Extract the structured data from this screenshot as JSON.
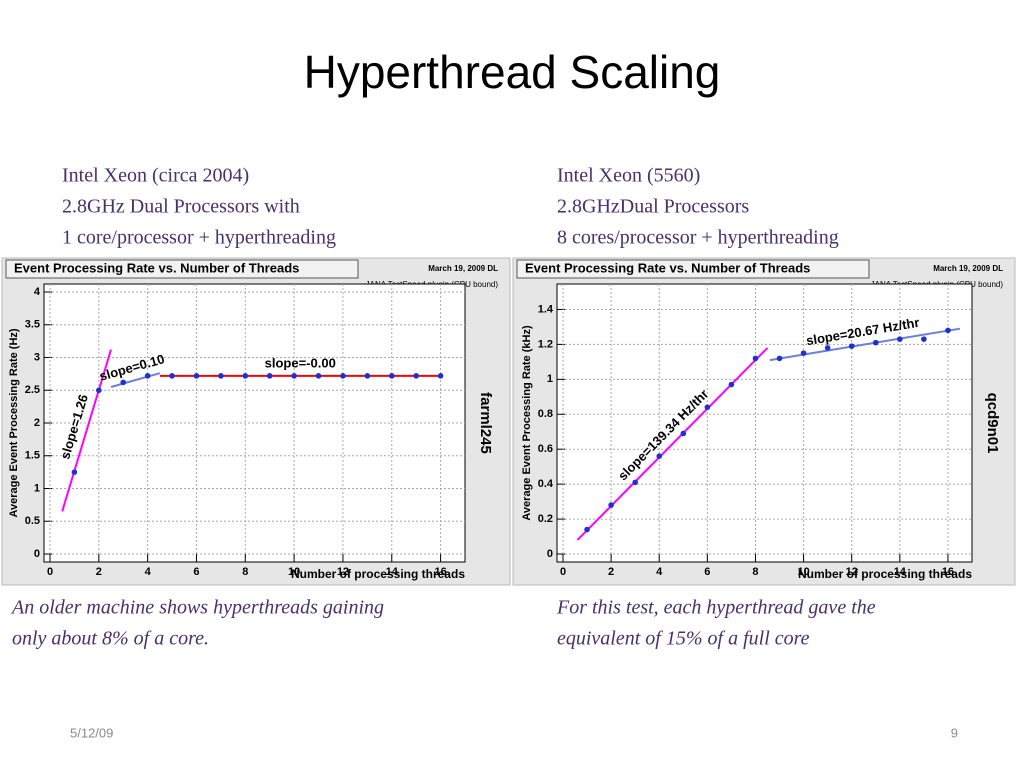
{
  "slide": {
    "title": "Hyperthread Scaling",
    "left_heading": [
      "Intel Xeon (circa 2004)",
      " 2.8GHz Dual Processors with",
      "1 core/processor + hyperthreading"
    ],
    "right_heading": [
      "Intel Xeon (5560)",
      "2.8GHzDual Processors",
      "8 cores/processor + hyperthreading"
    ],
    "left_caption": [
      "An older machine shows hyperthreads gaining",
      "only about 8% of a core."
    ],
    "right_caption": [
      "For this test, each hyperthread gave the",
      "equivalent of 15% of a full core"
    ],
    "date": "5/12/09",
    "page_number": "9"
  },
  "chart_data": [
    {
      "type": "scatter",
      "title": "Event Processing Rate vs. Number of Threads",
      "date": "March 19, 2009 DL",
      "subtitle": "JANA TestSpeed plugin (CPU bound)",
      "x_label": "Number of processing threads",
      "y_label": "Average Event Processing Rate (Hz)",
      "side_label": "farml245",
      "xlim": [
        0,
        17
      ],
      "xticks": [
        0,
        2,
        4,
        6,
        8,
        10,
        12,
        14,
        16
      ],
      "ylim": [
        0,
        4
      ],
      "yticks": [
        0,
        0.5,
        1,
        1.5,
        2,
        2.5,
        3,
        3.5,
        4
      ],
      "grid": true,
      "color": "#1f2fd0",
      "x": [
        1,
        2,
        3,
        4,
        5,
        6,
        7,
        8,
        9,
        10,
        11,
        12,
        13,
        14,
        15,
        16
      ],
      "values": [
        1.25,
        2.5,
        2.62,
        2.72,
        2.72,
        2.72,
        2.72,
        2.72,
        2.72,
        2.72,
        2.72,
        2.72,
        2.72,
        2.72,
        2.72,
        2.72
      ],
      "fits": [
        {
          "label": "slope=1.26",
          "color": "#ff00ff",
          "x": [
            0.5,
            2.5
          ],
          "y": [
            0.65,
            3.12
          ]
        },
        {
          "label": "slope=0.10",
          "color": "#6a7fe0",
          "x": [
            2.5,
            4.5
          ],
          "y": [
            2.55,
            2.76
          ]
        },
        {
          "label": "slope=-0.00",
          "color": "#ff0000",
          "x": [
            4.5,
            16
          ],
          "y": [
            2.72,
            2.72
          ]
        }
      ]
    },
    {
      "type": "scatter",
      "title": "Event Processing Rate vs. Number of Threads",
      "date": "March 19, 2009 DL",
      "subtitle": "JANA TestSpeed plugin (CPU bound)",
      "x_label": "Number of processing threads",
      "y_label": "Average Event Processing Rate (kHz)",
      "side_label": "qcd9n01",
      "xlim": [
        0,
        17
      ],
      "xticks": [
        0,
        2,
        4,
        6,
        8,
        10,
        12,
        14,
        16
      ],
      "ylim": [
        0,
        1.5
      ],
      "yticks": [
        0,
        0.2,
        0.4,
        0.6,
        0.8,
        1,
        1.2,
        1.4
      ],
      "grid": true,
      "color": "#1f2fd0",
      "x": [
        1,
        2,
        3,
        4,
        5,
        6,
        7,
        8,
        9,
        10,
        11,
        12,
        13,
        14,
        15,
        16
      ],
      "values": [
        0.14,
        0.28,
        0.41,
        0.56,
        0.69,
        0.84,
        0.97,
        1.12,
        1.12,
        1.15,
        1.18,
        1.19,
        1.21,
        1.23,
        1.23,
        1.28
      ],
      "fits": [
        {
          "label": "slope=139.34 Hz/thr",
          "color": "#ff00ff",
          "x": [
            0.6,
            8.5
          ],
          "y": [
            0.08,
            1.18
          ]
        },
        {
          "label": "slope=20.67 Hz/thr",
          "color": "#6a7fe0",
          "x": [
            8.6,
            16.5
          ],
          "y": [
            1.11,
            1.29
          ]
        }
      ]
    }
  ]
}
